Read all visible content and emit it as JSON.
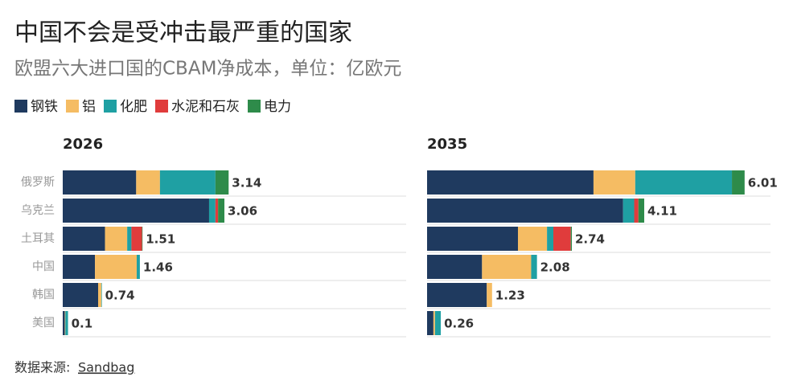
{
  "title": "中国不会是受冲击最严重的国家",
  "subtitle": "欧盟六大进口国的CBAM净成本，单位：亿欧元",
  "source": {
    "label": "数据来源:",
    "link": "Sandbag"
  },
  "chart_data": [
    {
      "type": "bar",
      "orientation": "horizontal",
      "title": "2026",
      "categories": [
        "俄罗斯",
        "乌克兰",
        "土耳其",
        "中国",
        "韩国",
        "美国"
      ],
      "series": [
        {
          "name": "钢铁",
          "color": "#1f3a5f",
          "values": [
            1.39,
            2.77,
            0.8,
            0.61,
            0.67,
            0.04
          ]
        },
        {
          "name": "铝",
          "color": "#f5bc63",
          "values": [
            0.45,
            0,
            0.42,
            0.79,
            0.06,
            0.01
          ]
        },
        {
          "name": "化肥",
          "color": "#1fa0a3",
          "values": [
            1.05,
            0.12,
            0.08,
            0.06,
            0.01,
            0.05
          ]
        },
        {
          "name": "水泥和石灰",
          "color": "#e03c3c",
          "values": [
            0,
            0.05,
            0.2,
            0,
            0,
            0
          ]
        },
        {
          "name": "电力",
          "color": "#2e8b4a",
          "values": [
            0.25,
            0.12,
            0.01,
            0,
            0,
            0
          ]
        }
      ],
      "totals": [
        3.14,
        3.06,
        1.51,
        1.46,
        0.74,
        0.1
      ],
      "xlim": [
        0,
        6.5
      ]
    },
    {
      "type": "bar",
      "orientation": "horizontal",
      "title": "2035",
      "series": [
        {
          "values": [
            3.15,
            3.71,
            1.72,
            1.04,
            1.13,
            0.12
          ]
        },
        {
          "values": [
            0.79,
            0,
            0.55,
            0.93,
            0.1,
            0.03
          ]
        },
        {
          "values": [
            1.83,
            0.21,
            0.12,
            0.11,
            0,
            0.11
          ]
        },
        {
          "values": [
            0,
            0.08,
            0.33,
            0,
            0,
            0
          ]
        },
        {
          "values": [
            0.24,
            0.11,
            0.02,
            0,
            0,
            0
          ]
        }
      ],
      "totals": [
        6.01,
        4.11,
        2.74,
        2.08,
        1.23,
        0.26
      ],
      "xlim": [
        0,
        6.5
      ]
    }
  ]
}
